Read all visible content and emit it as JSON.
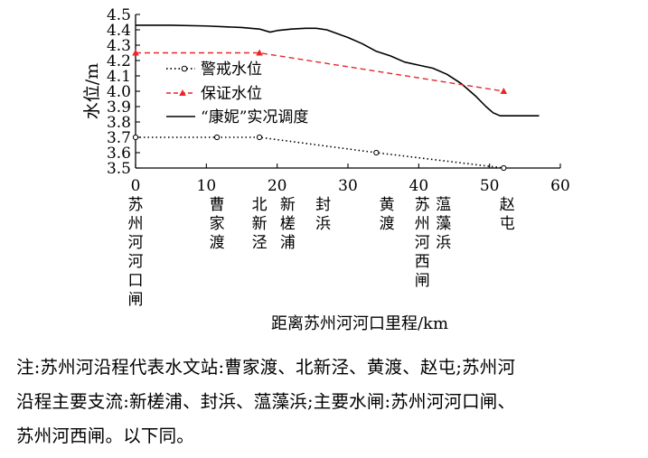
{
  "chart_data": {
    "type": "line",
    "xlabel": "距离苏州河河口里程/km",
    "ylabel": "水位/m",
    "xlim": [
      0,
      60
    ],
    "ylim": [
      3.5,
      4.5
    ],
    "xticks": [
      0,
      10,
      20,
      30,
      40,
      50,
      60
    ],
    "yticks": [
      "3.5",
      "3.6",
      "3.7",
      "3.8",
      "3.9",
      "4.0",
      "4.1",
      "4.2",
      "4.3",
      "4.4",
      "4.5"
    ],
    "grid": false,
    "legend_position": "left",
    "series": [
      {
        "name": "警戒水位",
        "style": "dotted-circle",
        "color": "#000000",
        "x": [
          0,
          11.5,
          17.5,
          34,
          52
        ],
        "y": [
          3.7,
          3.7,
          3.7,
          3.6,
          3.5
        ]
      },
      {
        "name": "保证水位",
        "style": "dashed-triangle",
        "color": "#e8262a",
        "x": [
          0,
          17.5,
          52
        ],
        "y": [
          4.25,
          4.25,
          4.0
        ]
      },
      {
        "name": "“康妮”实况调度",
        "style": "solid",
        "color": "#000000",
        "x": [
          0,
          5,
          10,
          15,
          17.5,
          19,
          20,
          22,
          24,
          25.5,
          27,
          28.5,
          30,
          32,
          34,
          36,
          38,
          40,
          42,
          44,
          46,
          48,
          49.5,
          50.5,
          51.5,
          53,
          55,
          57
        ],
        "y": [
          4.43,
          4.43,
          4.425,
          4.415,
          4.405,
          4.385,
          4.395,
          4.405,
          4.41,
          4.41,
          4.4,
          4.375,
          4.35,
          4.31,
          4.26,
          4.23,
          4.19,
          4.17,
          4.15,
          4.11,
          4.05,
          3.97,
          3.9,
          3.86,
          3.84,
          3.84,
          3.84,
          3.84
        ]
      }
    ],
    "stations": [
      {
        "x": 0,
        "label": "苏州河河口闸"
      },
      {
        "x": 11.5,
        "label": "曹家渡"
      },
      {
        "x": 17.5,
        "label": "北新泾"
      },
      {
        "x": 21.5,
        "label": "新槎浦"
      },
      {
        "x": 26.5,
        "label": "封浜"
      },
      {
        "x": 35.5,
        "label": "黄渡"
      },
      {
        "x": 40.5,
        "label": "苏州河西闸"
      },
      {
        "x": 43.5,
        "label": "蕰藻浜"
      },
      {
        "x": 52.5,
        "label": "赵屯"
      }
    ]
  },
  "note": {
    "lines": [
      "注:苏州河沿程代表水文站:曹家渡、北新泾、黄渡、赵屯;苏州河",
      "沿程主要支流:新槎浦、封浜、蕰藻浜;主要水闸:苏州河河口闸、",
      "苏州河西闸。以下同。"
    ]
  }
}
